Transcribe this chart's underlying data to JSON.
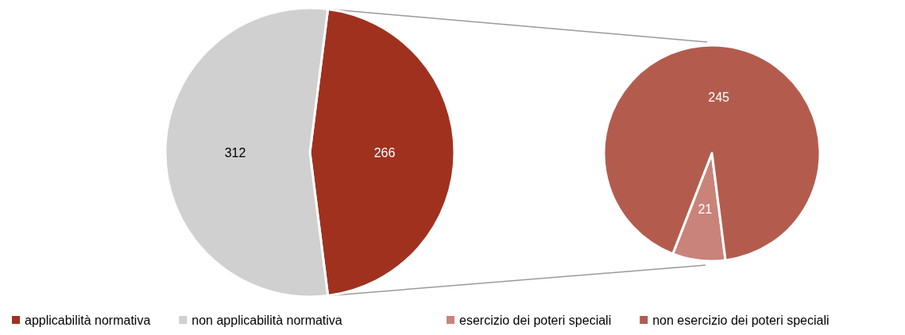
{
  "chart_data": [
    {
      "type": "pie",
      "categories": [
        "applicabilità normativa",
        "non applicabilità normativa"
      ],
      "values": [
        266,
        312
      ],
      "colors": [
        "#a0311f",
        "#d0d0d0"
      ],
      "data_labels": true,
      "legend": "bottom"
    },
    {
      "type": "pie",
      "categories": [
        "esercizio dei poteri speciali",
        "non esercizio dei poteri speciali"
      ],
      "values": [
        21,
        245
      ],
      "colors": [
        "#c9837a",
        "#b35c4e"
      ],
      "data_labels": true,
      "legend": "bottom"
    }
  ]
}
